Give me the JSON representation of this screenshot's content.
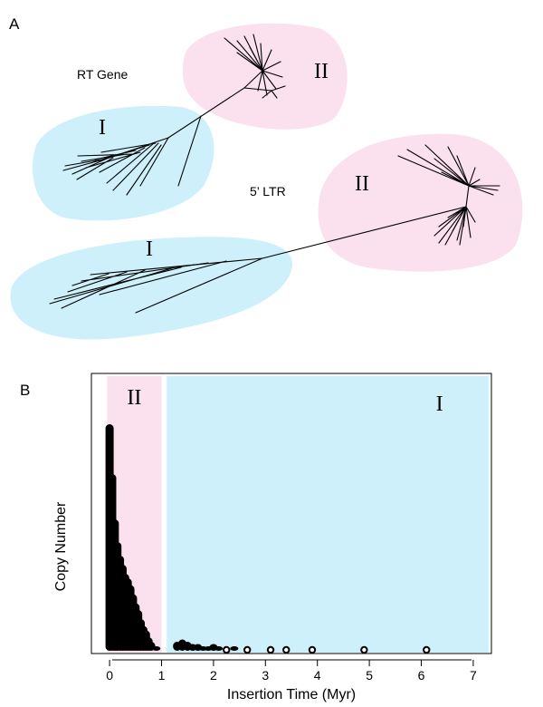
{
  "panels": {
    "a_label": "A",
    "b_label": "B"
  },
  "trees": {
    "rt": {
      "title": "RT Gene",
      "clade_i": "I",
      "clade_ii": "II"
    },
    "ltr": {
      "title": "5’ LTR",
      "clade_i": "I",
      "clade_ii": "II"
    }
  },
  "colors": {
    "clade_i": "#cdf0fb",
    "clade_ii": "#fbe0ee",
    "marks": "#000000"
  },
  "chart_data": {
    "type": "scatter",
    "xlabel": "Insertion Time (Myr)",
    "ylabel": "Copy Number",
    "xlim": [
      -0.35,
      7.35
    ],
    "x_ticks": [
      "0",
      "1",
      "2",
      "3",
      "4",
      "5",
      "6",
      "7"
    ],
    "y_ticks": [],
    "regions": [
      {
        "label": "II",
        "from": -0.05,
        "to": 1.0,
        "color": "#fbe0ee"
      },
      {
        "label": "I",
        "from": 1.1,
        "to": 7.3,
        "color": "#cdf0fb"
      }
    ],
    "x": [
      0.0,
      0.05,
      0.1,
      0.15,
      0.2,
      0.25,
      0.3,
      0.35,
      0.4,
      0.45,
      0.5,
      0.55,
      0.6,
      0.65,
      0.7,
      0.75,
      0.8,
      0.9,
      1.3,
      1.4,
      1.5,
      1.6,
      1.7,
      1.8,
      1.9,
      2.0,
      2.1,
      2.25,
      2.4,
      2.65,
      3.1,
      3.4,
      3.9,
      4.9,
      6.1
    ],
    "y": [
      100,
      78,
      58,
      48,
      42,
      38,
      34,
      32,
      29,
      25,
      21,
      18,
      14,
      11,
      9,
      6,
      4,
      2,
      4,
      5,
      4,
      3,
      3,
      2,
      2,
      3,
      2,
      1,
      2,
      1,
      1,
      1,
      1,
      1,
      1
    ]
  }
}
